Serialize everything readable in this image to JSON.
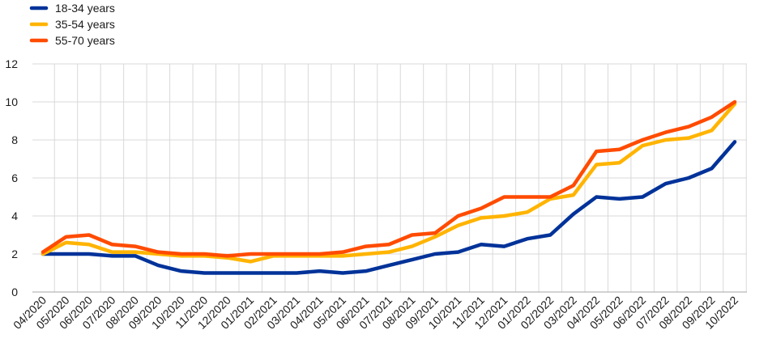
{
  "chart_data": {
    "type": "line",
    "title": "",
    "xlabel": "",
    "ylabel": "",
    "ylim": [
      0,
      12
    ],
    "yticks": [
      0,
      2,
      4,
      6,
      8,
      10,
      12
    ],
    "grid": true,
    "legend_position": "top-left",
    "x": [
      "04/2020",
      "05/2020",
      "06/2020",
      "07/2020",
      "08/2020",
      "09/2020",
      "10/2020",
      "11/2020",
      "12/2020",
      "01/2021",
      "02/2021",
      "03/2021",
      "04/2021",
      "05/2021",
      "06/2021",
      "07/2021",
      "08/2021",
      "09/2021",
      "10/2021",
      "11/2021",
      "12/2021",
      "01/2022",
      "02/2022",
      "03/2022",
      "04/2022",
      "05/2022",
      "06/2022",
      "07/2022",
      "08/2022",
      "09/2022",
      "10/2022"
    ],
    "series": [
      {
        "name": "18-34 years",
        "color": "#003299",
        "values": [
          2.0,
          2.0,
          2.0,
          1.9,
          1.9,
          1.4,
          1.1,
          1.0,
          1.0,
          1.0,
          1.0,
          1.0,
          1.1,
          1.0,
          1.1,
          1.4,
          1.7,
          2.0,
          2.1,
          2.5,
          2.4,
          2.8,
          3.0,
          4.1,
          5.0,
          4.9,
          5.0,
          5.7,
          6.0,
          6.5,
          7.9
        ]
      },
      {
        "name": "35-54 years",
        "color": "#FFB400",
        "values": [
          2.0,
          2.6,
          2.5,
          2.1,
          2.1,
          2.0,
          1.9,
          1.9,
          1.8,
          1.6,
          1.9,
          1.9,
          1.9,
          1.9,
          2.0,
          2.1,
          2.4,
          2.9,
          3.5,
          3.9,
          4.0,
          4.2,
          4.9,
          5.1,
          6.7,
          6.8,
          7.7,
          8.0,
          8.1,
          8.5,
          9.9
        ]
      },
      {
        "name": "55-70 years",
        "color": "#FF4B00",
        "values": [
          2.1,
          2.9,
          3.0,
          2.5,
          2.4,
          2.1,
          2.0,
          2.0,
          1.9,
          2.0,
          2.0,
          2.0,
          2.0,
          2.1,
          2.4,
          2.5,
          3.0,
          3.1,
          4.0,
          4.4,
          5.0,
          5.0,
          5.0,
          5.6,
          7.4,
          7.5,
          8.0,
          8.4,
          8.7,
          9.2,
          10.0
        ]
      }
    ]
  }
}
